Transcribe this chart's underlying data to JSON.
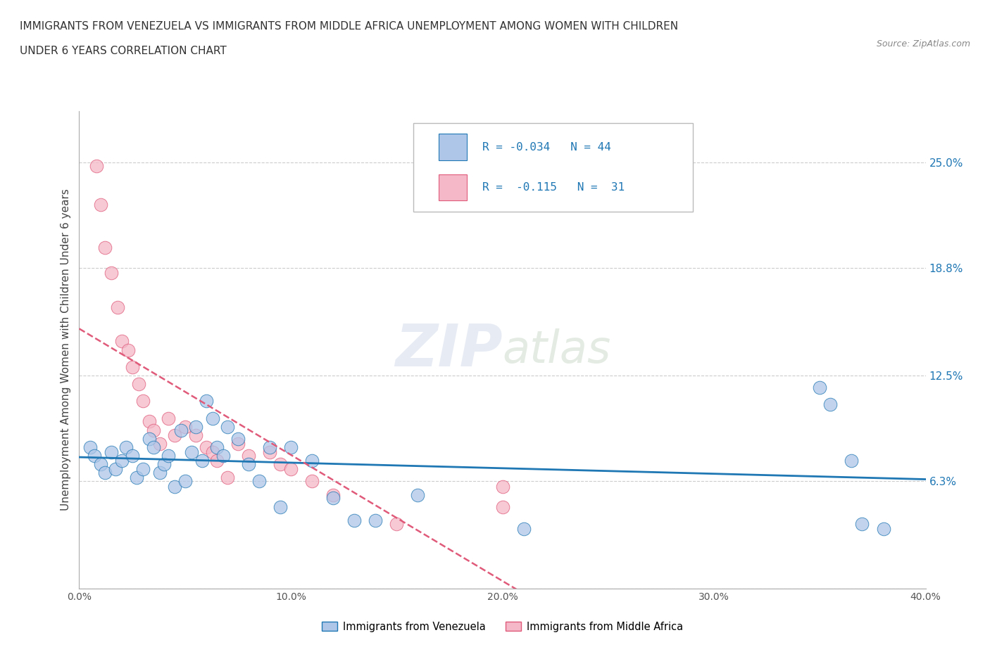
{
  "title_line1": "IMMIGRANTS FROM VENEZUELA VS IMMIGRANTS FROM MIDDLE AFRICA UNEMPLOYMENT AMONG WOMEN WITH CHILDREN",
  "title_line2": "UNDER 6 YEARS CORRELATION CHART",
  "source": "Source: ZipAtlas.com",
  "ylabel": "Unemployment Among Women with Children Under 6 years",
  "xlim": [
    0.0,
    0.4
  ],
  "ylim": [
    0.0,
    0.28
  ],
  "ytick_vals": [
    0.0,
    0.063,
    0.125,
    0.188,
    0.25
  ],
  "ytick_labels": [
    "",
    "6.3%",
    "12.5%",
    "18.8%",
    "25.0%"
  ],
  "xtick_vals": [
    0.0,
    0.1,
    0.2,
    0.3,
    0.4
  ],
  "xtick_labels": [
    "0.0%",
    "10.0%",
    "20.0%",
    "30.0%",
    "40.0%"
  ],
  "grid_color": "#cccccc",
  "color_venezuela": "#aec6e8",
  "color_africa": "#f4b8c8",
  "line_color_venezuela": "#1f77b4",
  "line_color_africa": "#e05a7a",
  "tick_label_color": "#1f77b4",
  "venezuela_x": [
    0.005,
    0.007,
    0.01,
    0.012,
    0.015,
    0.017,
    0.02,
    0.022,
    0.025,
    0.027,
    0.03,
    0.033,
    0.035,
    0.038,
    0.04,
    0.042,
    0.045,
    0.048,
    0.05,
    0.053,
    0.055,
    0.058,
    0.06,
    0.063,
    0.065,
    0.068,
    0.07,
    0.075,
    0.08,
    0.085,
    0.09,
    0.095,
    0.1,
    0.11,
    0.12,
    0.13,
    0.14,
    0.16,
    0.21,
    0.35,
    0.355,
    0.365,
    0.37,
    0.38
  ],
  "venezuela_y": [
    0.083,
    0.078,
    0.073,
    0.068,
    0.08,
    0.07,
    0.075,
    0.083,
    0.078,
    0.065,
    0.07,
    0.088,
    0.083,
    0.068,
    0.073,
    0.078,
    0.06,
    0.093,
    0.063,
    0.08,
    0.095,
    0.075,
    0.11,
    0.1,
    0.083,
    0.078,
    0.095,
    0.088,
    0.073,
    0.063,
    0.083,
    0.048,
    0.083,
    0.075,
    0.053,
    0.04,
    0.04,
    0.055,
    0.035,
    0.118,
    0.108,
    0.075,
    0.038,
    0.035
  ],
  "africa_x": [
    0.008,
    0.01,
    0.012,
    0.015,
    0.018,
    0.02,
    0.023,
    0.025,
    0.028,
    0.03,
    0.033,
    0.035,
    0.038,
    0.042,
    0.045,
    0.05,
    0.055,
    0.06,
    0.063,
    0.065,
    0.07,
    0.075,
    0.08,
    0.09,
    0.095,
    0.1,
    0.11,
    0.12,
    0.15,
    0.2,
    0.2
  ],
  "africa_y": [
    0.248,
    0.225,
    0.2,
    0.185,
    0.165,
    0.145,
    0.14,
    0.13,
    0.12,
    0.11,
    0.098,
    0.093,
    0.085,
    0.1,
    0.09,
    0.095,
    0.09,
    0.083,
    0.08,
    0.075,
    0.065,
    0.085,
    0.078,
    0.08,
    0.073,
    0.07,
    0.063,
    0.055,
    0.038,
    0.06,
    0.048
  ]
}
